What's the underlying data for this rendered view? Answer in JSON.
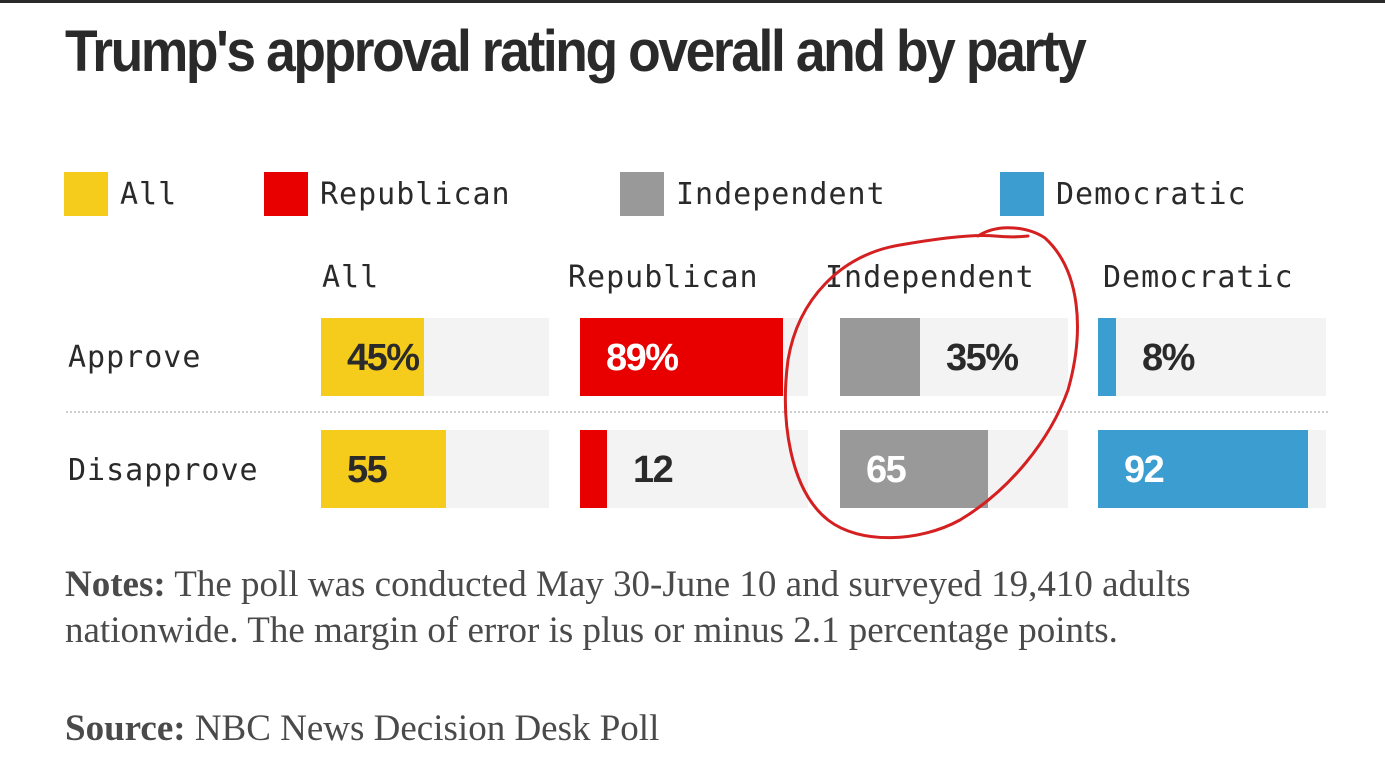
{
  "chart_data": {
    "type": "bar",
    "title": "Trump's approval rating overall and by party",
    "legend": [
      {
        "name": "All",
        "color": "#f5cc1c"
      },
      {
        "name": "Republican",
        "color": "#e80000"
      },
      {
        "name": "Independent",
        "color": "#999999"
      },
      {
        "name": "Democratic",
        "color": "#3c9ed0"
      }
    ],
    "legend_position": "top",
    "categories": [
      "All",
      "Republican",
      "Independent",
      "Democratic"
    ],
    "rows": [
      "Approve",
      "Disapprove"
    ],
    "series": [
      {
        "name": "Approve",
        "values": [
          45,
          89,
          35,
          8
        ],
        "labels": [
          "45%",
          "89%",
          "35%",
          "8%"
        ]
      },
      {
        "name": "Disapprove",
        "values": [
          55,
          12,
          65,
          92
        ],
        "labels": [
          "55",
          "12",
          "65",
          "92"
        ]
      }
    ],
    "xlim": [
      0,
      100
    ],
    "unit": "percent",
    "grid": false,
    "highlight": {
      "category": "Independent",
      "style": "hand-drawn red circle",
      "color": "#d42020"
    }
  },
  "notes": {
    "label": "Notes:",
    "text": " The poll was conducted May 30-June 10 and surveyed 19,410 adults nationwide. The margin of error is plus or minus 2.1 percentage points."
  },
  "source": {
    "label": "Source:",
    "text": " NBC News Decision Desk Poll"
  }
}
